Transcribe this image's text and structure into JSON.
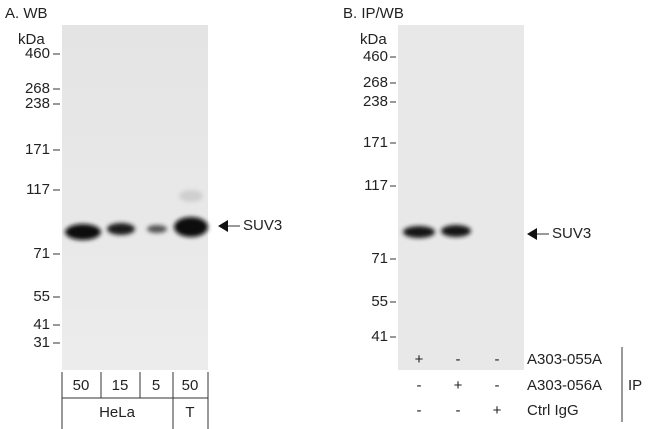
{
  "panel_a": {
    "title": "A. WB",
    "unit": "kDa",
    "markers": [
      "460",
      "268",
      "238",
      "171",
      "117",
      "71",
      "55",
      "41",
      "31"
    ],
    "target": "SUV3",
    "lanes": [
      "50",
      "15",
      "5",
      "50"
    ],
    "groups": [
      "HeLa",
      "T"
    ]
  },
  "panel_b": {
    "title": "B. IP/WB",
    "unit": "kDa",
    "markers": [
      "460",
      "268",
      "238",
      "171",
      "117",
      "71",
      "55",
      "41"
    ],
    "target": "SUV3",
    "rows": [
      {
        "marks": [
          "+",
          "-",
          "-"
        ],
        "label": "A303-055A"
      },
      {
        "marks": [
          "-",
          "+",
          "-"
        ],
        "label": "A303-056A"
      },
      {
        "marks": [
          "-",
          "-",
          "+"
        ],
        "label": "Ctrl IgG"
      }
    ],
    "group": "IP"
  }
}
